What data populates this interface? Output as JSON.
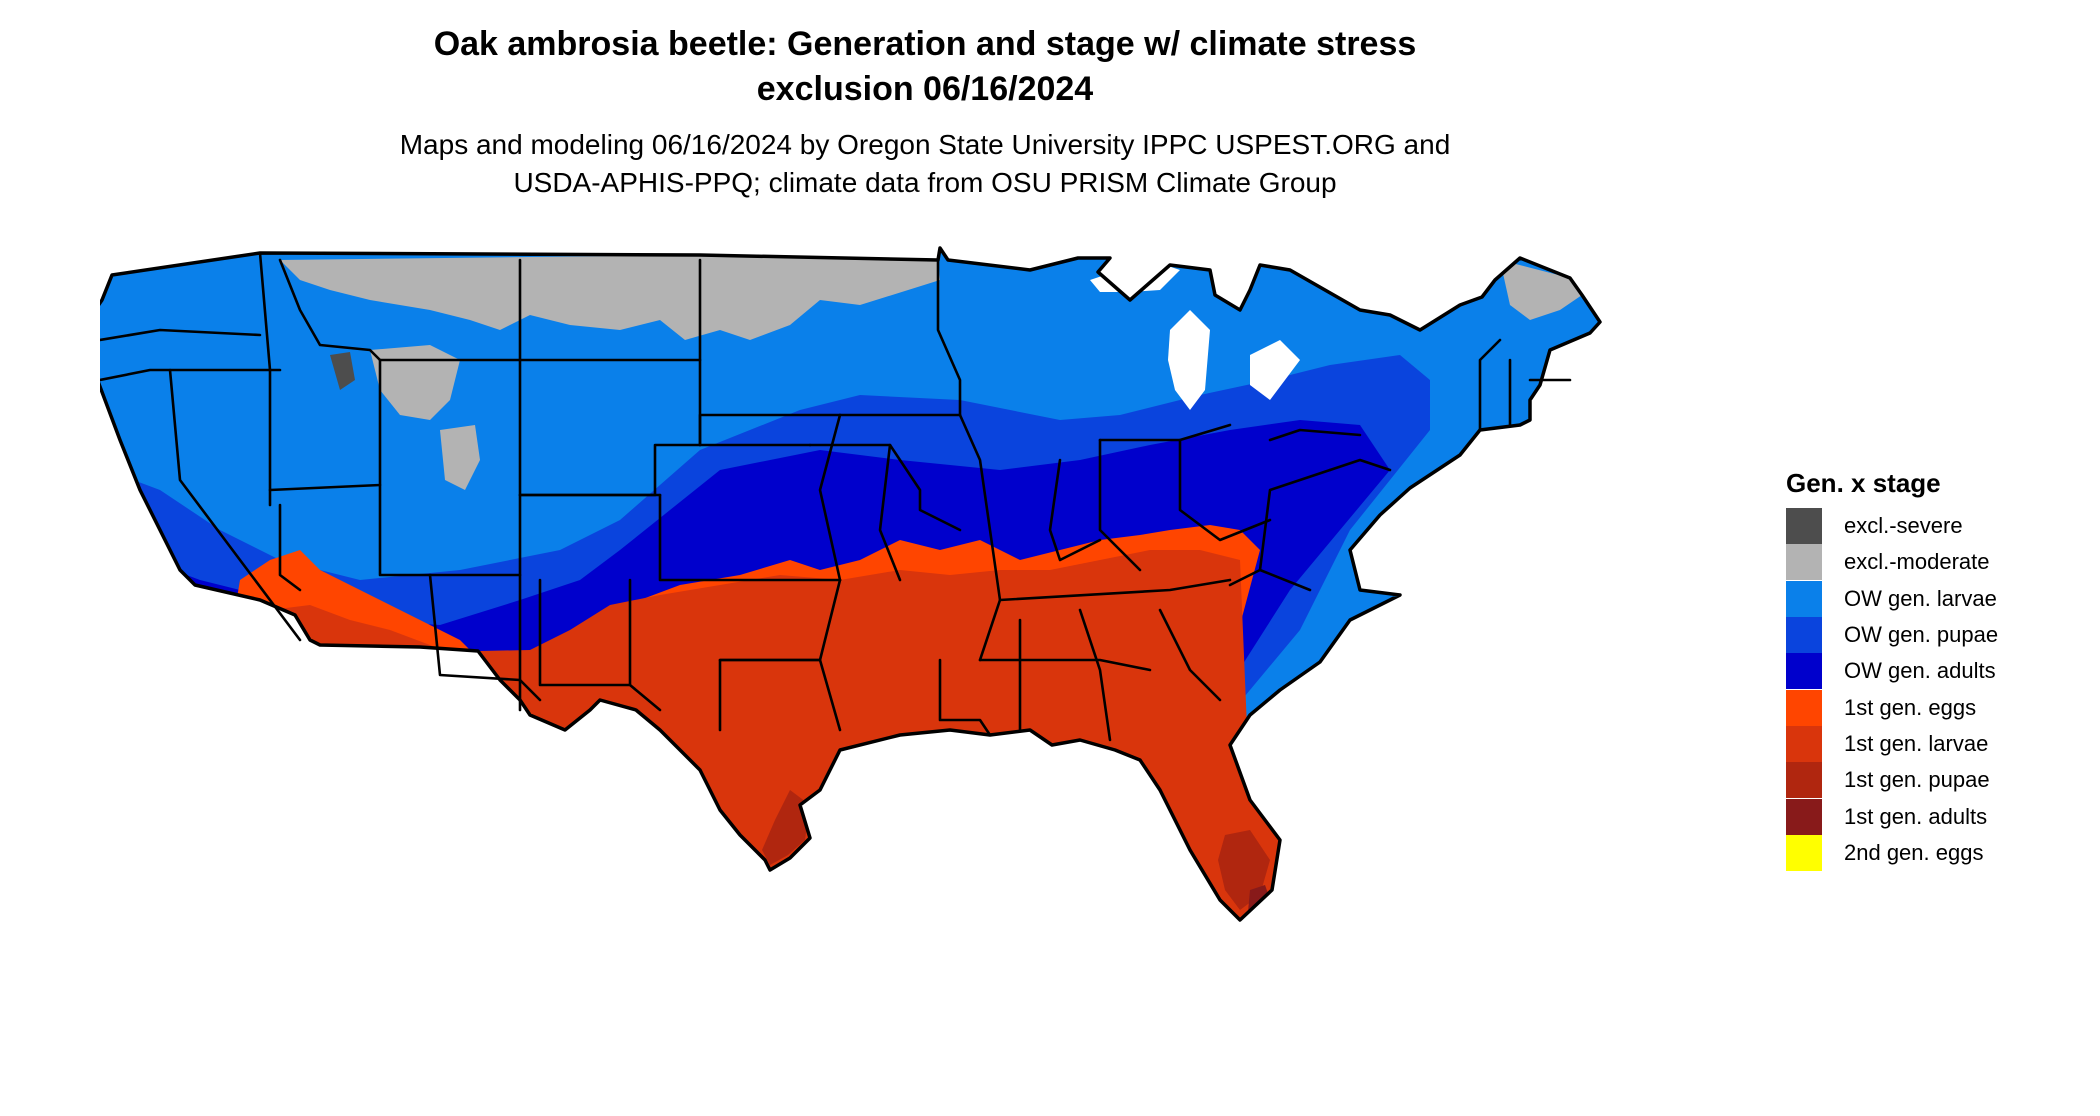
{
  "title": {
    "line1": "Oak ambrosia beetle: Generation and stage w/ climate stress",
    "line2": "exclusion 06/16/2024"
  },
  "subtitle": {
    "line1": "Maps and modeling 06/16/2024 by Oregon State University IPPC USPEST.ORG and",
    "line2": "USDA-APHIS-PPQ; climate data from OSU PRISM Climate Group"
  },
  "legend": {
    "title": "Gen. x stage",
    "items": [
      {
        "label": "excl.-severe",
        "color": "#4d4d4d"
      },
      {
        "label": "excl.-moderate",
        "color": "#b3b3b3"
      },
      {
        "label": "OW gen. larvae",
        "color": "#0a80ea"
      },
      {
        "label": "OW gen. pupae",
        "color": "#0a44dd"
      },
      {
        "label": "OW gen. adults",
        "color": "#0000cc"
      },
      {
        "label": "1st gen. eggs",
        "color": "#ff4500"
      },
      {
        "label": "1st gen. larvae",
        "color": "#d9350c"
      },
      {
        "label": "1st gen. pupae",
        "color": "#b0260f"
      },
      {
        "label": "1st gen. adults",
        "color": "#881a1a"
      },
      {
        "label": "2nd gen. eggs",
        "color": "#ffff00"
      }
    ]
  }
}
